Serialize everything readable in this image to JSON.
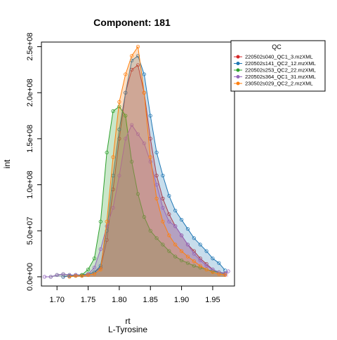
{
  "chart_data": {
    "type": "area",
    "title": "Component: 181",
    "xlabel": "rt",
    "xlabel_sub": "L-Tyrosine",
    "ylabel": "int",
    "xlim": [
      1.675,
      1.985
    ],
    "ylim": [
      -10000000,
      255000000
    ],
    "x_ticks": [
      1.7,
      1.75,
      1.8,
      1.85,
      1.9,
      1.95
    ],
    "x_tick_labels": [
      "1.70",
      "1.75",
      "1.80",
      "1.85",
      "1.90",
      "1.95"
    ],
    "y_ticks": [
      0,
      50000000,
      100000000,
      150000000,
      200000000,
      250000000
    ],
    "y_tick_labels": [
      "0.0e+00",
      "5.0e+07",
      "1.0e+08",
      "1.5e+08",
      "2.0e+08",
      "2.5e+08"
    ],
    "legend": {
      "title": "QC",
      "position": "top-right"
    },
    "series": [
      {
        "name": "220502s040_QC1_3.mzXML",
        "color": "#d62728",
        "x": [
          1.71,
          1.72,
          1.73,
          1.74,
          1.75,
          1.76,
          1.77,
          1.78,
          1.79,
          1.8,
          1.81,
          1.82,
          1.83,
          1.84,
          1.85,
          1.86,
          1.87,
          1.88,
          1.89,
          1.9,
          1.91,
          1.92,
          1.93,
          1.94,
          1.95,
          1.96,
          1.97
        ],
        "y": [
          0,
          1000000,
          2000000,
          2000000,
          3000000,
          5000000,
          10000000,
          40000000,
          95000000,
          150000000,
          200000000,
          225000000,
          230000000,
          200000000,
          150000000,
          110000000,
          85000000,
          68000000,
          55000000,
          45000000,
          35000000,
          28000000,
          20000000,
          14000000,
          8000000,
          5000000,
          3000000
        ]
      },
      {
        "name": "220502s141_QC2_12.mzXML",
        "color": "#1f77b4",
        "x": [
          1.71,
          1.72,
          1.73,
          1.74,
          1.75,
          1.76,
          1.77,
          1.78,
          1.79,
          1.8,
          1.81,
          1.82,
          1.83,
          1.84,
          1.85,
          1.86,
          1.87,
          1.88,
          1.89,
          1.9,
          1.91,
          1.92,
          1.93,
          1.94,
          1.95,
          1.96,
          1.97
        ],
        "y": [
          0,
          1000000,
          2000000,
          2000000,
          3000000,
          5000000,
          12000000,
          50000000,
          110000000,
          160000000,
          200000000,
          235000000,
          240000000,
          220000000,
          175000000,
          135000000,
          110000000,
          88000000,
          72000000,
          62000000,
          52000000,
          42000000,
          35000000,
          28000000,
          20000000,
          15000000,
          7000000
        ]
      },
      {
        "name": "220502s253_QC2_22.mzXML",
        "color": "#2ca02c",
        "x": [
          1.69,
          1.7,
          1.71,
          1.72,
          1.73,
          1.74,
          1.75,
          1.76,
          1.77,
          1.78,
          1.79,
          1.8,
          1.81,
          1.82,
          1.83,
          1.84,
          1.85,
          1.86,
          1.87,
          1.88,
          1.89,
          1.9,
          1.91,
          1.92,
          1.93,
          1.94,
          1.95,
          1.96,
          1.97
        ],
        "y": [
          0,
          2000000,
          3000000,
          2000000,
          1000000,
          2000000,
          8000000,
          20000000,
          60000000,
          135000000,
          180000000,
          185000000,
          175000000,
          125000000,
          90000000,
          65000000,
          50000000,
          42000000,
          35000000,
          28000000,
          22000000,
          18000000,
          15000000,
          12000000,
          10000000,
          8000000,
          6000000,
          5000000,
          4000000
        ]
      },
      {
        "name": "220502s364_QC1_31.mzXML",
        "color": "#9467bd",
        "x": [
          1.68,
          1.69,
          1.7,
          1.71,
          1.72,
          1.73,
          1.74,
          1.75,
          1.76,
          1.77,
          1.78,
          1.79,
          1.8,
          1.81,
          1.82,
          1.83,
          1.84,
          1.85,
          1.86,
          1.87,
          1.88,
          1.89,
          1.9,
          1.91,
          1.92,
          1.93,
          1.94,
          1.95,
          1.96,
          1.97,
          1.975
        ],
        "y": [
          0,
          0,
          2000000,
          3000000,
          2000000,
          2000000,
          1000000,
          3000000,
          10000000,
          30000000,
          55000000,
          75000000,
          110000000,
          150000000,
          165000000,
          155000000,
          145000000,
          125000000,
          100000000,
          75000000,
          60000000,
          55000000,
          45000000,
          35000000,
          25000000,
          18000000,
          12000000,
          8000000,
          5000000,
          4000000,
          6000000
        ]
      },
      {
        "name": "230502s029_QC2_2.mzXML",
        "color": "#ff7f0e",
        "x": [
          1.72,
          1.73,
          1.74,
          1.75,
          1.76,
          1.77,
          1.78,
          1.79,
          1.8,
          1.81,
          1.82,
          1.83,
          1.84,
          1.85,
          1.86,
          1.87,
          1.88,
          1.89,
          1.9,
          1.91,
          1.92,
          1.93,
          1.94,
          1.95,
          1.96,
          1.97
        ],
        "y": [
          0,
          1000000,
          1000000,
          2000000,
          3000000,
          8000000,
          60000000,
          130000000,
          190000000,
          220000000,
          240000000,
          250000000,
          200000000,
          130000000,
          85000000,
          60000000,
          45000000,
          35000000,
          28000000,
          22000000,
          17000000,
          12000000,
          8000000,
          5000000,
          3000000,
          2000000
        ]
      }
    ]
  }
}
